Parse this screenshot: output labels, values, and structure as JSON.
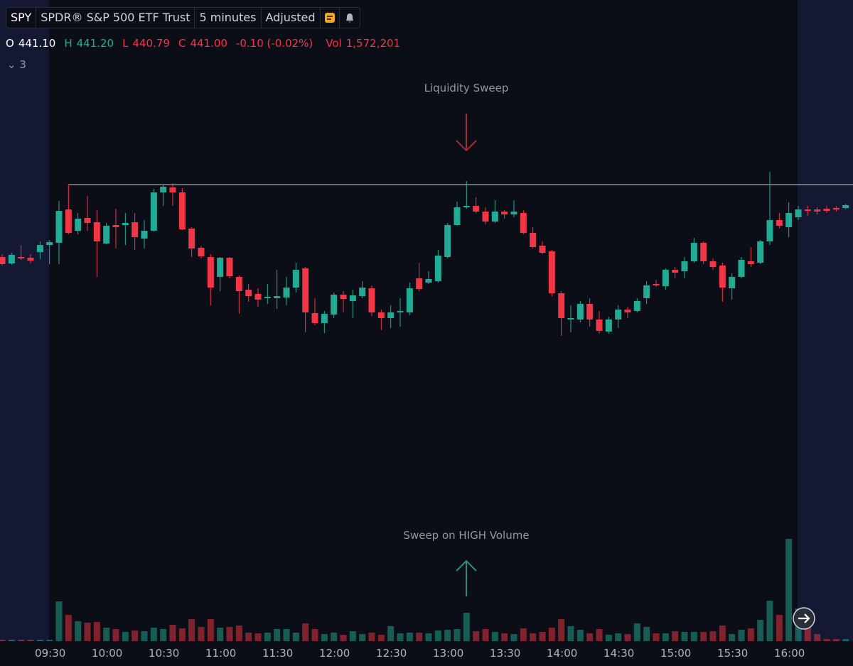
{
  "header": {
    "symbol": "SPY",
    "name": "SPDR® S&P 500 ETF Trust",
    "interval": "5 minutes",
    "adjustment": "Adjusted"
  },
  "ohlc_header": {
    "o_label": "O",
    "o": "441.10",
    "h_label": "H",
    "h": "441.20",
    "l_label": "L",
    "l": "440.79",
    "c_label": "C",
    "c": "441.00",
    "change": "-0.10 (-0.02%)",
    "vol_label": "Vol",
    "vol": "1,572,201"
  },
  "indicators": "3",
  "chart_data": {
    "type": "candlestick",
    "ylim": [
      435,
      444
    ],
    "volume_lim": [
      0,
      3000000
    ],
    "level": 441.4,
    "colors": {
      "up": "#22ab94",
      "down": "#f23645"
    },
    "annotations": [
      "Liquidity Sweep",
      "Sweep on HIGH Volume"
    ],
    "time_labels": [
      "09:30",
      "10:00",
      "10:30",
      "11:00",
      "11:30",
      "12:00",
      "12:30",
      "13:00",
      "13:30",
      "14:00",
      "14:30",
      "15:00",
      "15:30",
      "16:00"
    ],
    "open": [
      440.38,
      440.29,
      440.38,
      440.37,
      440.45,
      440.55,
      440.58,
      441.05,
      440.75,
      440.93,
      440.87,
      440.57,
      440.83,
      440.83,
      440.87,
      440.64,
      440.75,
      441.29,
      441.36,
      441.29,
      440.78,
      440.51,
      440.38,
      440.1,
      440.37,
      440.1,
      439.92,
      439.86,
      439.8,
      439.8,
      439.81,
      439.95,
      440.22,
      439.59,
      439.45,
      439.57,
      439.85,
      439.76,
      439.83,
      439.94,
      439.6,
      439.52,
      439.6,
      439.6,
      440.08,
      440.02,
      440.04,
      440.38,
      440.83,
      441.08,
      441.1,
      441.02,
      440.88,
      441.02,
      440.98,
      441.0,
      440.72,
      440.54,
      440.46,
      439.87,
      439.5,
      439.5,
      439.72,
      439.5,
      439.33,
      439.5,
      439.64,
      439.62,
      439.8,
      440.0,
      439.97,
      440.2,
      440.18,
      440.32,
      440.58,
      440.32,
      440.26,
      439.94,
      440.1,
      440.32,
      440.3,
      440.6,
      440.9,
      440.8,
      440.94,
      441.05,
      441.05,
      441.06,
      441.07,
      441.07
    ],
    "high": [
      440.42,
      440.44,
      440.55,
      440.42,
      440.6,
      440.62,
      441.17,
      441.4,
      441.0,
      441.24,
      441.04,
      440.86,
      441.06,
      441.0,
      441.0,
      440.9,
      441.34,
      441.4,
      441.42,
      441.35,
      440.8,
      440.54,
      440.42,
      440.38,
      440.38,
      440.12,
      440.0,
      439.94,
      440.0,
      440.2,
      440.1,
      440.3,
      440.24,
      439.8,
      439.62,
      439.88,
      439.9,
      439.92,
      440.04,
      439.98,
      439.64,
      439.7,
      439.8,
      440.02,
      440.3,
      440.18,
      440.48,
      440.86,
      441.16,
      441.45,
      441.22,
      441.08,
      441.18,
      441.04,
      441.18,
      441.04,
      440.8,
      440.6,
      440.48,
      439.9,
      439.7,
      439.76,
      439.8,
      439.62,
      439.54,
      439.7,
      439.68,
      439.8,
      440.04,
      440.06,
      440.22,
      440.24,
      440.38,
      440.65,
      440.6,
      440.36,
      440.3,
      440.15,
      440.38,
      440.52,
      440.62,
      441.58,
      441.0,
      441.15,
      441.1,
      441.1,
      441.08,
      441.1,
      441.1,
      441.13
    ],
    "low": [
      440.26,
      440.27,
      440.34,
      440.29,
      440.35,
      440.28,
      440.28,
      440.7,
      440.7,
      440.75,
      440.1,
      440.56,
      440.5,
      440.55,
      440.48,
      440.5,
      440.74,
      441.1,
      441.1,
      440.76,
      440.38,
      440.36,
      439.7,
      439.9,
      440.08,
      439.58,
      439.75,
      439.68,
      439.72,
      439.65,
      439.7,
      439.88,
      439.32,
      439.42,
      439.31,
      439.52,
      439.6,
      439.52,
      439.8,
      439.55,
      439.35,
      439.38,
      439.4,
      439.56,
      439.9,
      440.0,
      440.02,
      440.36,
      440.82,
      441.06,
      441.0,
      440.84,
      440.86,
      440.92,
      440.94,
      440.7,
      440.5,
      440.42,
      439.82,
      439.27,
      439.32,
      439.46,
      439.4,
      439.3,
      439.3,
      439.38,
      439.52,
      439.6,
      439.72,
      439.96,
      439.92,
      440.08,
      440.08,
      440.3,
      440.28,
      440.2,
      439.75,
      439.78,
      440.08,
      440.24,
      440.28,
      440.55,
      440.78,
      440.66,
      440.9,
      440.96,
      440.98,
      441.0,
      441.02,
      441.05
    ],
    "close": [
      440.28,
      440.41,
      440.36,
      440.33,
      440.55,
      440.59,
      441.03,
      440.72,
      440.92,
      440.86,
      440.6,
      440.82,
      440.8,
      440.86,
      440.66,
      440.75,
      441.29,
      441.37,
      441.29,
      440.77,
      440.5,
      440.39,
      439.95,
      440.37,
      440.11,
      439.9,
      439.83,
      439.78,
      439.82,
      439.83,
      439.95,
      440.2,
      439.6,
      439.45,
      439.58,
      439.85,
      439.79,
      439.84,
      439.95,
      439.6,
      439.52,
      439.6,
      439.62,
      439.94,
      439.93,
      440.07,
      440.4,
      440.83,
      441.08,
      441.1,
      441.02,
      440.88,
      441.02,
      440.98,
      441.02,
      440.72,
      440.52,
      440.44,
      439.87,
      439.52,
      439.52,
      439.72,
      439.5,
      439.34,
      439.5,
      439.64,
      439.6,
      439.76,
      439.98,
      439.98,
      440.2,
      440.16,
      440.32,
      440.58,
      440.32,
      440.24,
      439.95,
      440.1,
      440.34,
      440.28,
      440.6,
      440.9,
      440.82,
      441.0,
      441.05,
      441.03,
      441.02,
      441.03,
      441.05,
      441.11
    ],
    "volume": [
      40000,
      40000,
      40000,
      40000,
      40000,
      40000,
      1120000,
      740000,
      560000,
      520000,
      540000,
      380000,
      340000,
      260000,
      300000,
      280000,
      380000,
      340000,
      460000,
      360000,
      620000,
      400000,
      620000,
      380000,
      400000,
      440000,
      240000,
      220000,
      240000,
      340000,
      340000,
      240000,
      500000,
      340000,
      200000,
      240000,
      180000,
      280000,
      200000,
      240000,
      180000,
      420000,
      220000,
      240000,
      240000,
      220000,
      300000,
      320000,
      340000,
      800000,
      280000,
      340000,
      260000,
      220000,
      200000,
      360000,
      220000,
      260000,
      380000,
      620000,
      420000,
      320000,
      220000,
      340000,
      180000,
      220000,
      200000,
      500000,
      400000,
      220000,
      220000,
      280000,
      260000,
      260000,
      260000,
      280000,
      440000,
      200000,
      320000,
      360000,
      600000,
      1140000,
      740000,
      2880000,
      920000,
      400000,
      200000,
      60000,
      60000,
      60000
    ]
  }
}
